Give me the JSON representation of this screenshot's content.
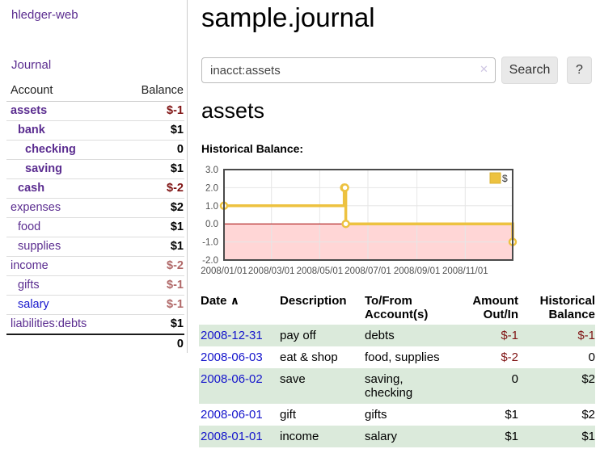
{
  "sidebar": {
    "app_title": "hledger-web",
    "journal_label": "Journal",
    "accounts_table": {
      "headers": {
        "account": "Account",
        "balance": "Balance"
      },
      "rows": [
        {
          "name": "assets",
          "indent": 1,
          "bold": true,
          "blue": false,
          "balance": "$-1",
          "balance_style": "neg-strong"
        },
        {
          "name": "bank",
          "indent": 2,
          "bold": true,
          "blue": false,
          "balance": "$1",
          "balance_style": "pos"
        },
        {
          "name": "checking",
          "indent": 3,
          "bold": true,
          "blue": false,
          "balance": "0",
          "balance_style": "pos"
        },
        {
          "name": "saving",
          "indent": 3,
          "bold": true,
          "blue": false,
          "balance": "$1",
          "balance_style": "pos"
        },
        {
          "name": "cash",
          "indent": 2,
          "bold": true,
          "blue": false,
          "balance": "$-2",
          "balance_style": "neg-strong"
        },
        {
          "name": "expenses",
          "indent": 1,
          "bold": false,
          "blue": false,
          "balance": "$2",
          "balance_style": "pos"
        },
        {
          "name": "food",
          "indent": 2,
          "bold": false,
          "blue": false,
          "balance": "$1",
          "balance_style": "pos"
        },
        {
          "name": "supplies",
          "indent": 2,
          "bold": false,
          "blue": false,
          "balance": "$1",
          "balance_style": "pos"
        },
        {
          "name": "income",
          "indent": 1,
          "bold": false,
          "blue": false,
          "balance": "$-2",
          "balance_style": "neg-soft"
        },
        {
          "name": "gifts",
          "indent": 2,
          "bold": false,
          "blue": false,
          "balance": "$-1",
          "balance_style": "neg-soft"
        },
        {
          "name": "salary",
          "indent": 2,
          "bold": false,
          "blue": true,
          "balance": "$-1",
          "balance_style": "neg-soft"
        },
        {
          "name": "liabilities:debts",
          "indent": 1,
          "bold": false,
          "blue": false,
          "balance": "$1",
          "balance_style": "pos"
        }
      ],
      "total": "0"
    }
  },
  "main": {
    "title": "sample.journal",
    "search": {
      "value": "inacct:assets",
      "clear_icon": "✕",
      "button_label": "Search",
      "help_label": "?"
    },
    "account_heading": "assets",
    "chart_label": "Historical Balance:"
  },
  "chart_data": {
    "type": "line",
    "style": "steps",
    "title": "Historical Balance:",
    "series": [
      {
        "name": "$",
        "color": "#edc240",
        "points": [
          {
            "date": "2008-01-01",
            "value": 1
          },
          {
            "date": "2008-06-01",
            "value": 2
          },
          {
            "date": "2008-06-02",
            "value": 2
          },
          {
            "date": "2008-06-03",
            "value": 0
          },
          {
            "date": "2008-12-31",
            "value": -1
          }
        ]
      }
    ],
    "x_ticks": [
      {
        "label": "2008/01/01",
        "date": "2008-01-01"
      },
      {
        "label": "2008/03/01",
        "date": "2008-03-01"
      },
      {
        "label": "2008/05/01",
        "date": "2008-05-01"
      },
      {
        "label": "2008/07/01",
        "date": "2008-07-01"
      },
      {
        "label": "2008/09/01",
        "date": "2008-09-01"
      },
      {
        "label": "2008/11/01",
        "date": "2008-11-01"
      }
    ],
    "y_ticks": [
      {
        "label": "3.0",
        "value": 3
      },
      {
        "label": "2.0",
        "value": 2
      },
      {
        "label": "1.0",
        "value": 1
      },
      {
        "label": "0.0",
        "value": 0
      },
      {
        "label": "-1.0",
        "value": -1
      },
      {
        "label": "-2.0",
        "value": -2
      }
    ],
    "xlim": [
      "2008-01-01",
      "2008-12-31"
    ],
    "ylim": [
      -2,
      3
    ],
    "grid": true,
    "legend": {
      "label": "$",
      "position": "top-right"
    },
    "colors": {
      "line": "#edc240",
      "marker_fill": "#ffffff",
      "negative_region": "#ffd6d6",
      "zero_line": "#a40000",
      "grid": "#e6e6e6",
      "border": "#4a4a4a",
      "tick_text": "#4f4f4f"
    }
  },
  "register_table": {
    "headers": {
      "date": "Date",
      "sort_icon": "∧",
      "description": "Description",
      "accounts": "To/From Account(s)",
      "amount": "Amount Out/In",
      "balance": "Historical Balance"
    },
    "rows": [
      {
        "date": "2008-12-31",
        "description": "pay off",
        "accounts": "debts",
        "amount": "$-1",
        "amount_neg": true,
        "balance": "$-1",
        "balance_neg": true,
        "shaded": true
      },
      {
        "date": "2008-06-03",
        "description": "eat & shop",
        "accounts": "food, supplies",
        "amount": "$-2",
        "amount_neg": true,
        "balance": "0",
        "balance_neg": false,
        "shaded": false
      },
      {
        "date": "2008-06-02",
        "description": "save",
        "accounts": "saving, checking",
        "amount": "0",
        "amount_neg": false,
        "balance": "$2",
        "balance_neg": false,
        "shaded": true
      },
      {
        "date": "2008-06-01",
        "description": "gift",
        "accounts": "gifts",
        "amount": "$1",
        "amount_neg": false,
        "balance": "$2",
        "balance_neg": false,
        "shaded": false
      },
      {
        "date": "2008-01-01",
        "description": "income",
        "accounts": "salary",
        "amount": "$1",
        "amount_neg": false,
        "balance": "$1",
        "balance_neg": false,
        "shaded": true
      }
    ]
  }
}
